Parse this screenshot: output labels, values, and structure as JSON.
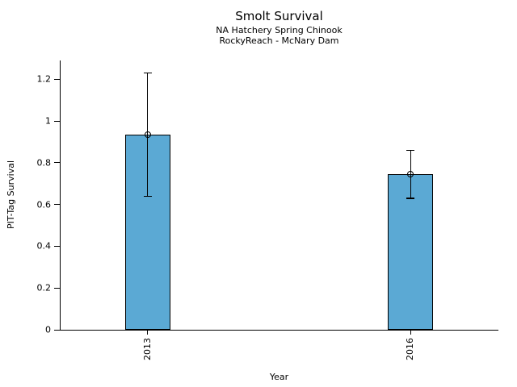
{
  "chart_data": {
    "type": "bar",
    "title": "Smolt Survival",
    "subtitles": [
      "NA Hatchery Spring Chinook",
      "RockyReach - McNary Dam"
    ],
    "categories": [
      "2013",
      "2016"
    ],
    "values": [
      0.935,
      0.745
    ],
    "error_low": [
      0.64,
      0.63
    ],
    "error_high": [
      1.23,
      0.86
    ],
    "xlabel": "Year",
    "ylabel": "PIT-Tag Survival",
    "ylim": [
      0,
      1.29
    ],
    "yticks": [
      0,
      0.2,
      0.4,
      0.6,
      0.8,
      1.0,
      1.2
    ],
    "ytick_labels": [
      "0",
      "0.2",
      "0.4",
      "0.6",
      "0.8",
      "1",
      "1.2"
    ],
    "bar_color": "#5BA9D4",
    "edge_color": "#000000",
    "marker": "open-circle",
    "grid": false,
    "legend": "none"
  }
}
